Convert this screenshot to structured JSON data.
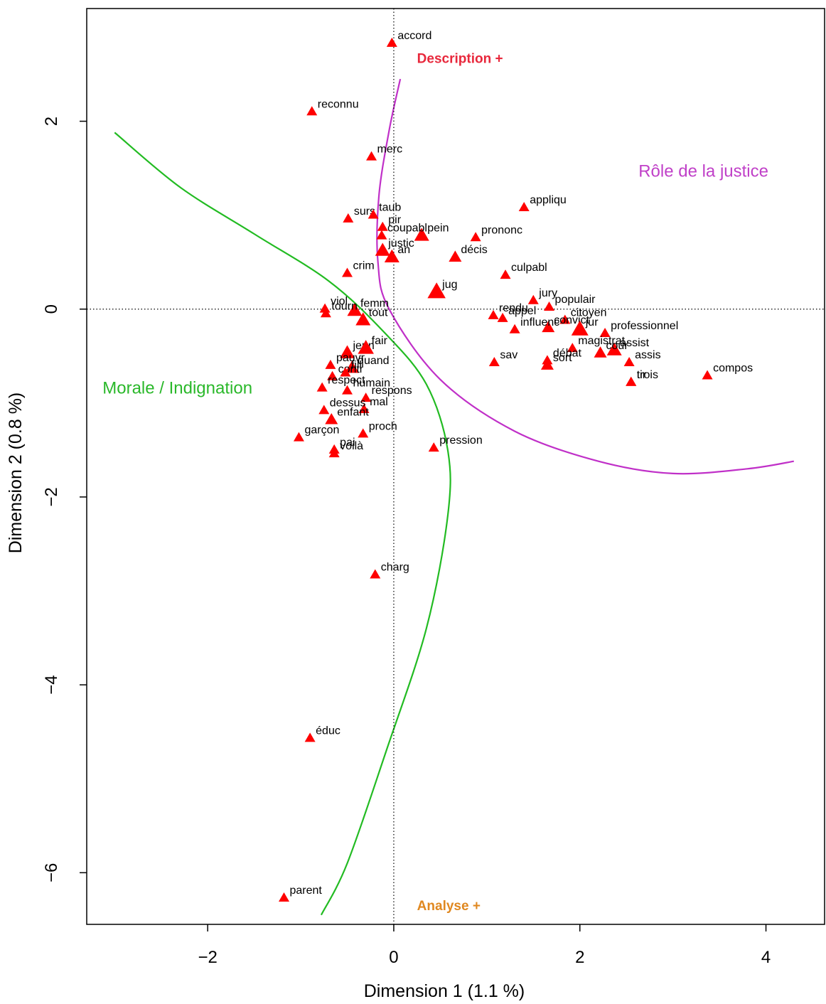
{
  "chart_data": {
    "type": "scatter",
    "xlabel": "Dimension 1 (1.1 %)",
    "ylabel": "Dimension 2 (0.8 %)",
    "xlim": [
      -3.3,
      4.63
    ],
    "ylim": [
      -6.55,
      3.2
    ],
    "xticks": [
      -2,
      0,
      2,
      4
    ],
    "yticks": [
      -6,
      -4,
      -2,
      0,
      2
    ],
    "reference_lines": {
      "x": 0,
      "y": 0,
      "style": "dotted"
    },
    "grid": false,
    "marker": {
      "shape": "triangle",
      "color": "#ff0000"
    },
    "points": [
      {
        "label": "accord",
        "x": -0.02,
        "y": 2.83,
        "size": 1
      },
      {
        "label": "reconnu",
        "x": -0.88,
        "y": 2.1,
        "size": 1
      },
      {
        "label": "merc",
        "x": -0.24,
        "y": 1.62,
        "size": 1
      },
      {
        "label": "appliqu",
        "x": 1.4,
        "y": 1.08,
        "size": 1
      },
      {
        "label": "surs",
        "x": -0.49,
        "y": 0.96,
        "size": 1
      },
      {
        "label": "taub",
        "x": -0.22,
        "y": 1.0,
        "size": 1
      },
      {
        "label": "pir",
        "x": -0.12,
        "y": 0.87,
        "size": 1
      },
      {
        "label": "pein",
        "x": 0.3,
        "y": 0.78,
        "size": 1.4
      },
      {
        "label": "prononc",
        "x": 0.88,
        "y": 0.76,
        "size": 1
      },
      {
        "label": "coupabl",
        "x": -0.13,
        "y": 0.78,
        "size": 1
      },
      {
        "label": "justic",
        "x": -0.12,
        "y": 0.62,
        "size": 1.4
      },
      {
        "label": "an",
        "x": -0.02,
        "y": 0.55,
        "size": 1.4
      },
      {
        "label": "décis",
        "x": 0.66,
        "y": 0.55,
        "size": 1.2
      },
      {
        "label": "crim",
        "x": -0.5,
        "y": 0.38,
        "size": 1
      },
      {
        "label": "culpabl",
        "x": 1.2,
        "y": 0.36,
        "size": 1
      },
      {
        "label": "jug",
        "x": 0.46,
        "y": 0.18,
        "size": 1.7
      },
      {
        "label": "jury",
        "x": 1.5,
        "y": 0.09,
        "size": 1
      },
      {
        "label": "populair",
        "x": 1.67,
        "y": 0.02,
        "size": 1
      },
      {
        "label": "viol",
        "x": -0.74,
        "y": 0.0,
        "size": 1
      },
      {
        "label": "femm",
        "x": -0.42,
        "y": -0.02,
        "size": 1.4
      },
      {
        "label": "rendu",
        "x": 1.07,
        "y": -0.07,
        "size": 1
      },
      {
        "label": "citoyen",
        "x": 1.84,
        "y": -0.12,
        "size": 1
      },
      {
        "label": "tourn",
        "x": -0.73,
        "y": -0.05,
        "size": 1
      },
      {
        "label": "tout",
        "x": -0.33,
        "y": -0.12,
        "size": 1.4
      },
      {
        "label": "appel",
        "x": 1.17,
        "y": -0.1,
        "size": 1
      },
      {
        "label": "convict",
        "x": 1.66,
        "y": -0.2,
        "size": 1.2
      },
      {
        "label": "influenc",
        "x": 1.3,
        "y": -0.22,
        "size": 1
      },
      {
        "label": "jur",
        "x": 2.0,
        "y": -0.22,
        "size": 1.6
      },
      {
        "label": "professionnel",
        "x": 2.27,
        "y": -0.26,
        "size": 1
      },
      {
        "label": "magistrat",
        "x": 1.92,
        "y": -0.42,
        "size": 1
      },
      {
        "label": "assist",
        "x": 2.37,
        "y": -0.44,
        "size": 1.4
      },
      {
        "label": "jeun",
        "x": -0.5,
        "y": -0.47,
        "size": 1.4
      },
      {
        "label": "fair",
        "x": -0.3,
        "y": -0.42,
        "size": 1.5
      },
      {
        "label": "débat",
        "x": 1.65,
        "y": -0.55,
        "size": 1
      },
      {
        "label": "pauvr",
        "x": -0.68,
        "y": -0.6,
        "size": 1
      },
      {
        "label": "quand",
        "x": -0.45,
        "y": -0.63,
        "size": 1.3
      },
      {
        "label": "cour",
        "x": 2.22,
        "y": -0.47,
        "size": 1.2
      },
      {
        "label": "sav",
        "x": 1.08,
        "y": -0.57,
        "size": 1
      },
      {
        "label": "sort",
        "x": 1.65,
        "y": -0.6,
        "size": 1.2
      },
      {
        "label": "assis",
        "x": 2.53,
        "y": -0.57,
        "size": 1
      },
      {
        "label": "compos",
        "x": 3.37,
        "y": -0.71,
        "size": 1
      },
      {
        "label": "tir",
        "x": 2.55,
        "y": -0.78,
        "size": 1
      },
      {
        "label": "contr",
        "x": -0.66,
        "y": -0.72,
        "size": 1
      },
      {
        "label": "fill",
        "x": -0.52,
        "y": -0.68,
        "size": 1
      },
      {
        "label": "respect",
        "x": -0.77,
        "y": -0.84,
        "size": 1
      },
      {
        "label": "respons",
        "x": -0.3,
        "y": -0.95,
        "size": 1
      },
      {
        "label": "trois",
        "x": 2.55,
        "y": -0.78,
        "size": 1
      },
      {
        "label": "humain",
        "x": -0.5,
        "y": -0.87,
        "size": 1
      },
      {
        "label": "mal",
        "x": -0.32,
        "y": -1.07,
        "size": 1
      },
      {
        "label": "dessus",
        "x": -0.75,
        "y": -1.08,
        "size": 1
      },
      {
        "label": "enfant",
        "x": -0.67,
        "y": -1.18,
        "size": 1.2
      },
      {
        "label": "garçon",
        "x": -1.02,
        "y": -1.37,
        "size": 1
      },
      {
        "label": "proch",
        "x": -0.33,
        "y": -1.33,
        "size": 1
      },
      {
        "label": "pai",
        "x": -0.64,
        "y": -1.5,
        "size": 1
      },
      {
        "label": "pression",
        "x": 0.43,
        "y": -1.48,
        "size": 1
      },
      {
        "label": "voilà",
        "x": -0.64,
        "y": -1.54,
        "size": 1
      },
      {
        "label": "charg",
        "x": -0.2,
        "y": -2.83,
        "size": 1
      },
      {
        "label": "éduc",
        "x": -0.9,
        "y": -4.57,
        "size": 1
      },
      {
        "label": "parent",
        "x": -1.18,
        "y": -6.27,
        "size": 1
      }
    ],
    "annotations": [
      {
        "text": "Description +",
        "x": 0.25,
        "y": 2.62,
        "color": "#e8283c",
        "bold": true
      },
      {
        "text": "Rôle de la justice",
        "x": 2.63,
        "y": 1.41,
        "color": "#c040c8",
        "bold": false
      },
      {
        "text": "Morale / Indignation",
        "x": -3.13,
        "y": -0.9,
        "color": "#2ab82a",
        "bold": false
      },
      {
        "text": "Analyse +",
        "x": 0.25,
        "y": -6.4,
        "color": "#e08820",
        "bold": true
      }
    ],
    "curves": [
      {
        "name": "magenta",
        "color": "#c030c8",
        "points": [
          [
            0.07,
            2.45
          ],
          [
            -0.05,
            1.9
          ],
          [
            -0.16,
            1.2
          ],
          [
            -0.17,
            0.5
          ],
          [
            -0.05,
            0.0
          ],
          [
            0.5,
            -0.75
          ],
          [
            1.3,
            -1.3
          ],
          [
            2.2,
            -1.62
          ],
          [
            3.0,
            -1.75
          ],
          [
            3.8,
            -1.7
          ],
          [
            4.3,
            -1.62
          ]
        ]
      },
      {
        "name": "green",
        "color": "#22bb22",
        "points": [
          [
            -3.0,
            1.88
          ],
          [
            -2.3,
            1.3
          ],
          [
            -1.5,
            0.8
          ],
          [
            -0.7,
            0.3
          ],
          [
            -0.1,
            -0.25
          ],
          [
            0.35,
            -0.8
          ],
          [
            0.58,
            -1.5
          ],
          [
            0.58,
            -2.2
          ],
          [
            0.35,
            -3.4
          ],
          [
            -0.08,
            -4.7
          ],
          [
            -0.5,
            -5.9
          ],
          [
            -0.78,
            -6.45
          ]
        ]
      }
    ]
  }
}
